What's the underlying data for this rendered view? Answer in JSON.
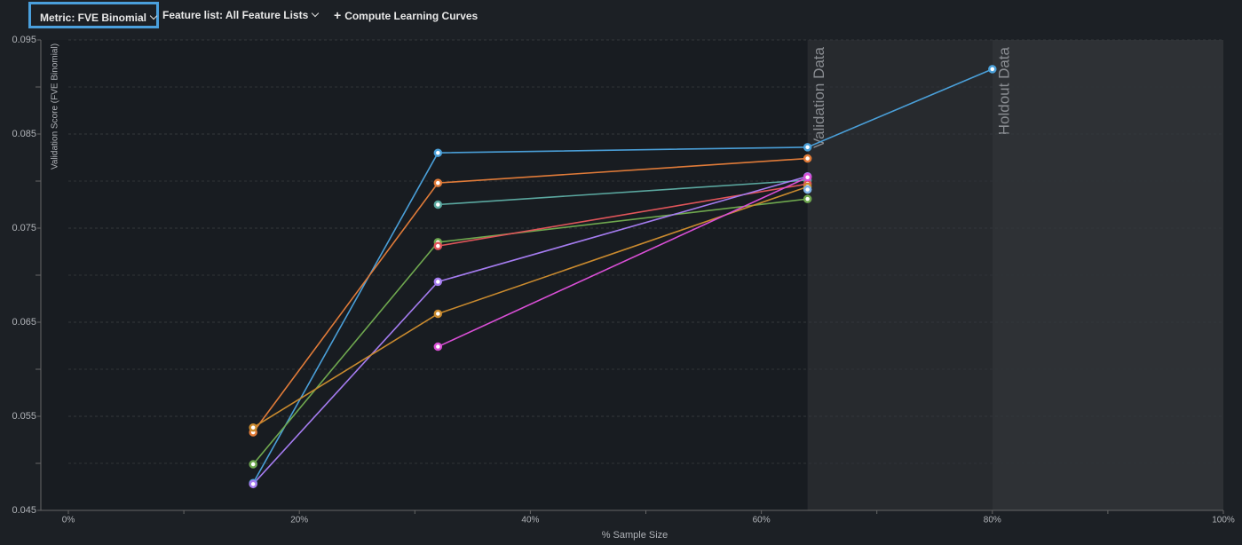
{
  "toolbar": {
    "metric": "Metric: FVE Binomial",
    "feature_list": "Feature list: All Feature Lists",
    "compute": "Compute Learning Curves"
  },
  "chart_data": {
    "type": "line",
    "x_label": "% Sample Size",
    "y_label": "Validation Score (FVE Binomial)",
    "x": [
      16,
      32,
      64,
      80
    ],
    "series": [
      {
        "color": "#4a9fd8",
        "values": [
          0.0479,
          0.083,
          0.0836,
          0.0919
        ]
      },
      {
        "color": "#e07b39",
        "values": [
          0.0533,
          0.0798,
          0.0824,
          null
        ]
      },
      {
        "color": "#5ba8a0",
        "values": [
          null,
          0.0775,
          0.0801,
          null
        ]
      },
      {
        "color": "#6fa84f",
        "values": [
          0.0499,
          0.0735,
          0.0781,
          null
        ]
      },
      {
        "color": "#e0555a",
        "values": [
          null,
          0.0731,
          0.0797,
          null
        ]
      },
      {
        "color": "#a57cf0",
        "values": [
          0.0478,
          0.0693,
          0.0805,
          null
        ]
      },
      {
        "color": "#c98a2e",
        "values": [
          0.0538,
          0.0659,
          0.0794,
          null
        ]
      },
      {
        "color": "#d94fd6",
        "values": [
          null,
          0.0624,
          0.0804,
          null
        ]
      },
      {
        "color": "#7fb2e6",
        "values": [
          null,
          null,
          0.0791,
          null
        ]
      }
    ],
    "regions": [
      {
        "label": "Validation Data",
        "start": 64,
        "end": 80
      },
      {
        "label": "Holdout Data",
        "start": 80,
        "end": 100
      }
    ],
    "xlim": [
      0,
      100
    ],
    "xticks": [
      {
        "value": 0,
        "label": "0%"
      },
      {
        "value": 20,
        "label": "20%"
      },
      {
        "value": 40,
        "label": "40%"
      },
      {
        "value": 60,
        "label": "60%"
      },
      {
        "value": 80,
        "label": "80%"
      },
      {
        "value": 100,
        "label": "100%"
      }
    ],
    "xminor": [
      10,
      30,
      50,
      70,
      90
    ],
    "ylim": [
      0.045,
      0.095
    ],
    "yticks": [
      0.045,
      0.055,
      0.065,
      0.075,
      0.085,
      0.095
    ],
    "yminor": [
      0.05,
      0.06,
      0.07,
      0.08,
      0.09
    ],
    "grid": true
  }
}
